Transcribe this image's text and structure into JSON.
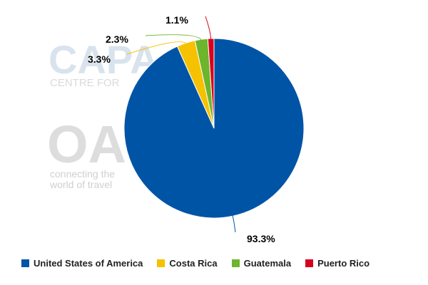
{
  "watermark": {
    "capa_logo": "CAPA",
    "capa_tagline": "CENTRE FOR",
    "oag_logo": "OAG",
    "oag_tagline_1": "connecting the",
    "oag_tagline_2": "world of travel"
  },
  "chart_data": {
    "type": "pie",
    "title": "",
    "legend_position": "bottom",
    "slices": [
      {
        "name": "United States of America",
        "value": 93.3,
        "label": "93.3%",
        "color": "#0054a6"
      },
      {
        "name": "Costa Rica",
        "value": 3.3,
        "label": "3.3%",
        "color": "#f6c100"
      },
      {
        "name": "Guatemala",
        "value": 2.3,
        "label": "2.3%",
        "color": "#6cb52d"
      },
      {
        "name": "Puerto Rico",
        "value": 1.1,
        "label": "1.1%",
        "color": "#d8001e"
      }
    ]
  }
}
